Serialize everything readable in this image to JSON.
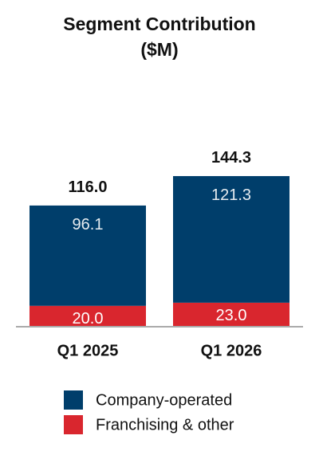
{
  "chart_data": {
    "type": "stacked-bar",
    "title": "Segment Contribution ($M)",
    "categories": [
      "Q1 2025",
      "Q1 2026"
    ],
    "series": [
      {
        "name": "Franchising & other",
        "color": "#d9262e",
        "values": [
          20.0,
          23.0
        ],
        "value_labels": [
          "20.0",
          "23.0"
        ]
      },
      {
        "name": "Company-operated",
        "color": "#003e6b",
        "values": [
          96.1,
          121.3
        ],
        "value_labels": [
          "96.1",
          "121.3"
        ]
      }
    ],
    "totals": {
      "values": [
        116.0,
        144.3
      ],
      "value_labels": [
        "116.0",
        "144.3"
      ]
    }
  }
}
